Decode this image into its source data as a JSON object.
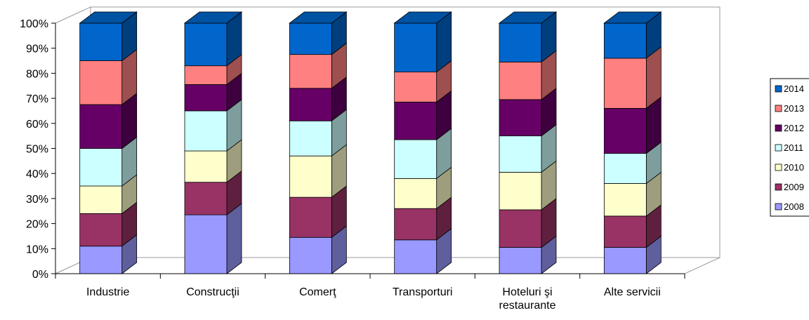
{
  "chart_data": {
    "type": "bar",
    "stacked": true,
    "percent_stacked": true,
    "three_d": true,
    "categories": [
      [
        "Industrie"
      ],
      [
        "Construcţii"
      ],
      [
        "Comerţ"
      ],
      [
        "Transporturi"
      ],
      [
        "Hoteluri şi",
        "restaurante"
      ],
      [
        "Alte servicii"
      ]
    ],
    "series": [
      {
        "name": "2008",
        "color": "#9999FF",
        "values": [
          11,
          23.5,
          14.5,
          13.5,
          10.5,
          10.5
        ]
      },
      {
        "name": "2009",
        "color": "#993366",
        "values": [
          13,
          13,
          16,
          12.5,
          15,
          12.5
        ]
      },
      {
        "name": "2010",
        "color": "#FFFFCC",
        "values": [
          11,
          12.5,
          16.5,
          12,
          15,
          13
        ]
      },
      {
        "name": "2011",
        "color": "#CCFFFF",
        "values": [
          15,
          16,
          14,
          15.5,
          14.5,
          12
        ]
      },
      {
        "name": "2012",
        "color": "#660066",
        "values": [
          17.5,
          10.5,
          13,
          15,
          14.5,
          18
        ]
      },
      {
        "name": "2013",
        "color": "#FF8080",
        "values": [
          17.5,
          7.5,
          13.5,
          12,
          15,
          20
        ]
      },
      {
        "name": "2014",
        "color": "#0066CC",
        "values": [
          15,
          17,
          12.5,
          19.5,
          15.5,
          14
        ]
      }
    ],
    "yticks": [
      "0%",
      "10%",
      "20%",
      "30%",
      "40%",
      "50%",
      "60%",
      "70%",
      "80%",
      "90%",
      "100%"
    ],
    "ylim": [
      0,
      100
    ],
    "legend_position": "right",
    "grid": false
  }
}
